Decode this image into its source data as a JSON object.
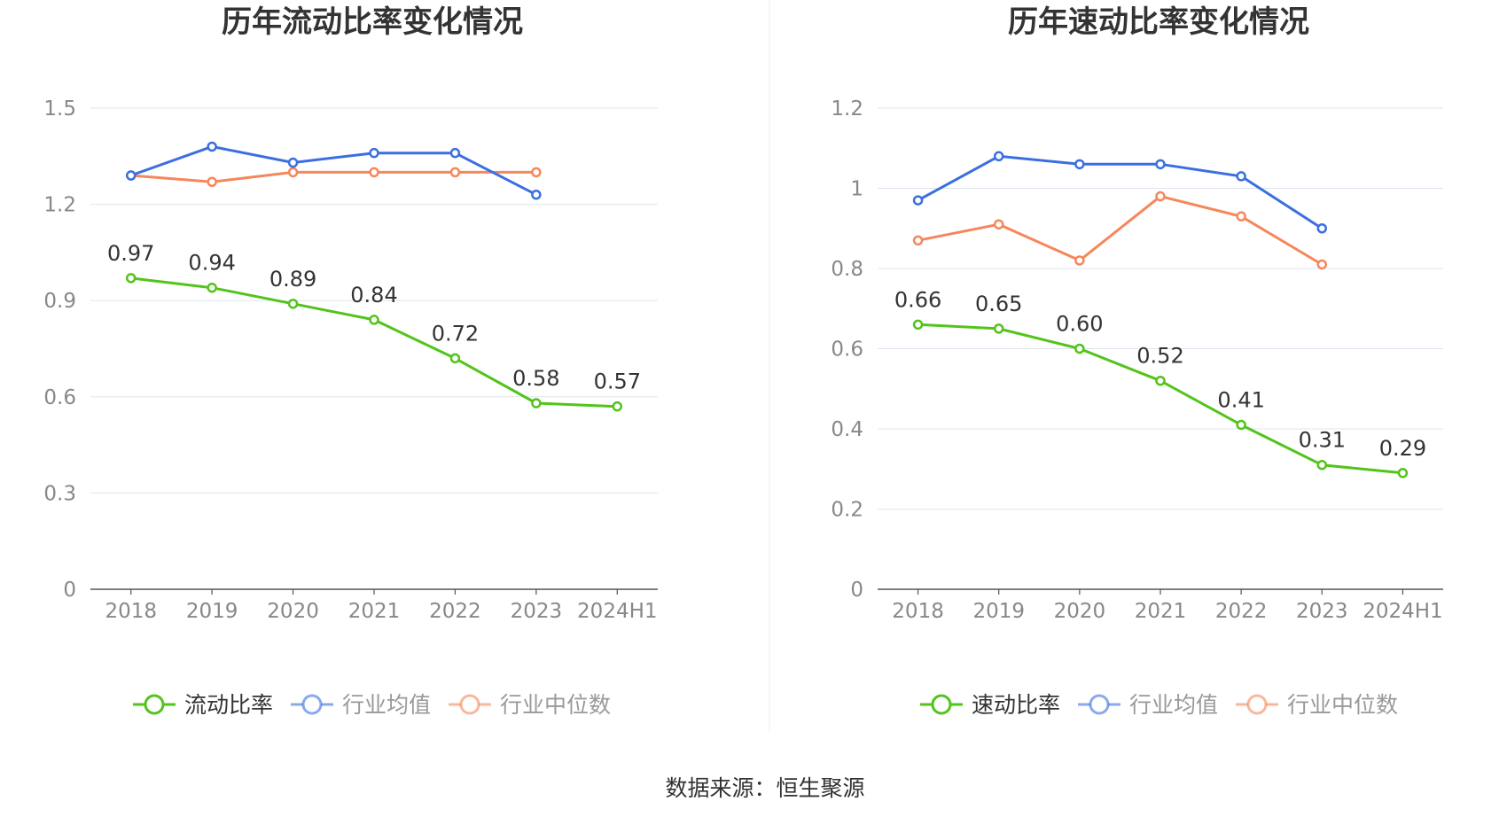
{
  "source_label": "数据来源：恒生聚源",
  "colors": {
    "main": "#52c41a",
    "avg": "#3b6fe0",
    "median": "#f5875a",
    "grid": "#dfe5f0",
    "axis": "#555555",
    "tick_text": "#888888",
    "title": "#333333"
  },
  "chart_data": [
    {
      "type": "line",
      "title": "历年流动比率变化情况",
      "categories": [
        "2018",
        "2019",
        "2020",
        "2021",
        "2022",
        "2023",
        "2024H1"
      ],
      "yticks": [
        "0",
        "0.3",
        "0.6",
        "0.9",
        "1.2",
        "1.5"
      ],
      "ylim": [
        0,
        1.5
      ],
      "grid": true,
      "legend_position": "bottom",
      "series": [
        {
          "name": "流动比率",
          "values": [
            0.97,
            0.94,
            0.89,
            0.84,
            0.72,
            0.58,
            0.57
          ],
          "labels": [
            "0.97",
            "0.94",
            "0.89",
            "0.84",
            "0.72",
            "0.58",
            "0.57"
          ],
          "color": "#52c41a",
          "show_labels": true
        },
        {
          "name": "行业均值",
          "values": [
            1.29,
            1.38,
            1.33,
            1.36,
            1.36,
            1.23,
            null
          ],
          "color": "#3b6fe0",
          "show_labels": false
        },
        {
          "name": "行业中位数",
          "values": [
            1.29,
            1.27,
            1.3,
            1.3,
            1.3,
            1.3,
            null
          ],
          "color": "#f5875a",
          "show_labels": false
        }
      ]
    },
    {
      "type": "line",
      "title": "历年速动比率变化情况",
      "categories": [
        "2018",
        "2019",
        "2020",
        "2021",
        "2022",
        "2023",
        "2024H1"
      ],
      "yticks": [
        "0",
        "0.2",
        "0.4",
        "0.6",
        "0.8",
        "1",
        "1.2"
      ],
      "ylim": [
        0,
        1.2
      ],
      "grid": true,
      "legend_position": "bottom",
      "series": [
        {
          "name": "速动比率",
          "values": [
            0.66,
            0.65,
            0.6,
            0.52,
            0.41,
            0.31,
            0.29
          ],
          "labels": [
            "0.66",
            "0.65",
            "0.60",
            "0.52",
            "0.41",
            "0.31",
            "0.29"
          ],
          "color": "#52c41a",
          "show_labels": true
        },
        {
          "name": "行业均值",
          "values": [
            0.97,
            1.08,
            1.06,
            1.06,
            1.03,
            0.9,
            null
          ],
          "color": "#3b6fe0",
          "show_labels": false
        },
        {
          "name": "行业中位数",
          "values": [
            0.87,
            0.91,
            0.82,
            0.98,
            0.93,
            0.81,
            null
          ],
          "color": "#f5875a",
          "show_labels": false
        }
      ]
    }
  ]
}
